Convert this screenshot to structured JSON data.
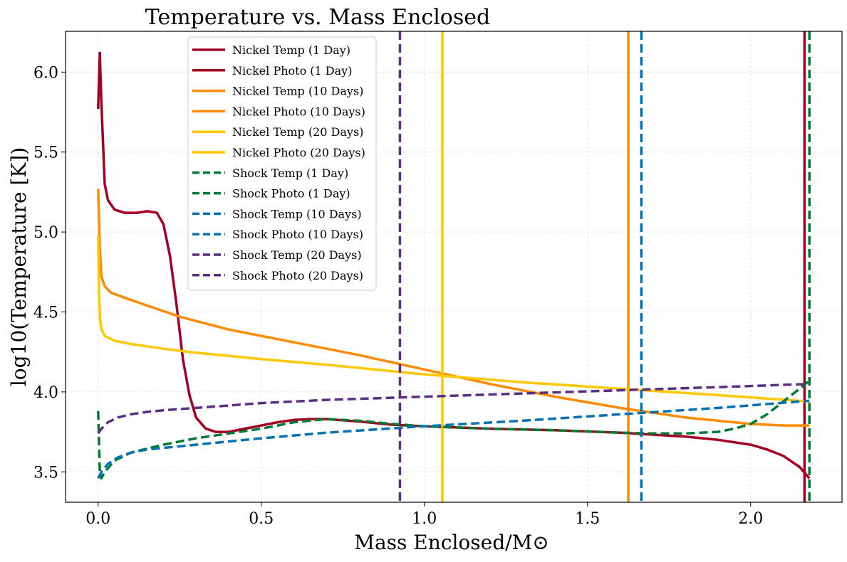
{
  "chart_data": {
    "type": "line",
    "title": "Temperature vs. Mass Enclosed",
    "xlabel": "Mass Enclosed/M⊙",
    "ylabel": "log10(Temperature [K])",
    "xlim": [
      -0.1,
      2.28
    ],
    "ylim": [
      3.31,
      6.255
    ],
    "xticks": [
      0.0,
      0.5,
      1.0,
      1.5,
      2.0
    ],
    "xtick_labels": [
      "0.0",
      "0.5",
      "1.0",
      "1.5",
      "2.0"
    ],
    "yticks": [
      3.5,
      4.0,
      4.5,
      5.0,
      5.5,
      6.0
    ],
    "ytick_labels": [
      "3.5",
      "4.0",
      "4.5",
      "5.0",
      "5.5",
      "6.0"
    ],
    "grid": true,
    "legend_position": "upper-center-left",
    "series": [
      {
        "name": "Nickel Temp (1 Day)",
        "color": "#a50021",
        "dash": "solid",
        "x": [
          0.0,
          0.005,
          0.01,
          0.015,
          0.02,
          0.03,
          0.05,
          0.08,
          0.12,
          0.15,
          0.18,
          0.2,
          0.22,
          0.24,
          0.26,
          0.28,
          0.3,
          0.33,
          0.36,
          0.4,
          0.45,
          0.5,
          0.55,
          0.6,
          0.65,
          0.7,
          0.8,
          0.9,
          1.0,
          1.2,
          1.4,
          1.6,
          1.8,
          1.9,
          2.0,
          2.05,
          2.1,
          2.15,
          2.18
        ],
        "y": [
          5.77,
          6.12,
          5.8,
          5.55,
          5.3,
          5.2,
          5.14,
          5.12,
          5.12,
          5.13,
          5.12,
          5.05,
          4.85,
          4.55,
          4.2,
          3.98,
          3.84,
          3.77,
          3.75,
          3.75,
          3.77,
          3.79,
          3.81,
          3.825,
          3.83,
          3.83,
          3.815,
          3.795,
          3.785,
          3.77,
          3.76,
          3.745,
          3.72,
          3.7,
          3.67,
          3.64,
          3.6,
          3.53,
          3.46
        ]
      },
      {
        "name": "Nickel Photo (1 Day)",
        "color": "#a50021",
        "dash": "solid",
        "vline": 2.165
      },
      {
        "name": "Nickel Temp (10 Days)",
        "color": "#ff8c00",
        "dash": "solid",
        "x": [
          0.0,
          0.005,
          0.01,
          0.02,
          0.04,
          0.08,
          0.15,
          0.25,
          0.4,
          0.6,
          0.8,
          1.0,
          1.2,
          1.4,
          1.6,
          1.8,
          2.0,
          2.1,
          2.18
        ],
        "y": [
          5.27,
          4.9,
          4.72,
          4.66,
          4.62,
          4.59,
          4.54,
          4.47,
          4.39,
          4.31,
          4.23,
          4.14,
          4.05,
          3.97,
          3.9,
          3.84,
          3.8,
          3.79,
          3.79
        ]
      },
      {
        "name": "Nickel Photo (10 Days)",
        "color": "#ff8c00",
        "dash": "solid",
        "vline": 1.625
      },
      {
        "name": "Nickel Temp (20 Days)",
        "color": "#ffc800",
        "dash": "solid",
        "x": [
          0.0,
          0.003,
          0.006,
          0.01,
          0.02,
          0.05,
          0.1,
          0.2,
          0.3,
          0.5,
          0.7,
          1.0,
          1.3,
          1.6,
          1.9,
          2.18
        ],
        "y": [
          4.98,
          4.6,
          4.45,
          4.39,
          4.35,
          4.32,
          4.3,
          4.27,
          4.245,
          4.205,
          4.17,
          4.11,
          4.06,
          4.02,
          3.98,
          3.94
        ]
      },
      {
        "name": "Nickel Photo (20 Days)",
        "color": "#ffc800",
        "dash": "solid",
        "vline": 1.055
      },
      {
        "name": "Shock Temp (1 Day)",
        "color": "#007a33",
        "dash": "dashed",
        "x": [
          0.0,
          0.005,
          0.01,
          0.02,
          0.05,
          0.1,
          0.2,
          0.3,
          0.4,
          0.5,
          0.6,
          0.7,
          0.8,
          0.9,
          1.0,
          1.2,
          1.4,
          1.6,
          1.7,
          1.8,
          1.9,
          1.95,
          2.0,
          2.05,
          2.1,
          2.15,
          2.18
        ],
        "y": [
          3.88,
          3.5,
          3.46,
          3.5,
          3.57,
          3.62,
          3.67,
          3.71,
          3.74,
          3.77,
          3.81,
          3.83,
          3.82,
          3.8,
          3.785,
          3.77,
          3.76,
          3.745,
          3.74,
          3.74,
          3.75,
          3.77,
          3.8,
          3.86,
          3.94,
          4.02,
          4.07
        ]
      },
      {
        "name": "Shock Photo (1 Day)",
        "color": "#007a33",
        "dash": "dashed",
        "vline": 2.18
      },
      {
        "name": "Shock Temp (10 Days)",
        "color": "#0072b2",
        "dash": "dashed",
        "x": [
          0.0,
          0.01,
          0.03,
          0.06,
          0.1,
          0.15,
          0.2,
          0.3,
          0.5,
          0.7,
          1.0,
          1.3,
          1.6,
          1.9,
          2.18
        ],
        "y": [
          3.46,
          3.5,
          3.55,
          3.59,
          3.62,
          3.64,
          3.65,
          3.67,
          3.71,
          3.745,
          3.785,
          3.82,
          3.86,
          3.9,
          3.945
        ]
      },
      {
        "name": "Shock Photo (10 Days)",
        "color": "#0072b2",
        "dash": "dashed",
        "vline": 1.665
      },
      {
        "name": "Shock Temp (20 Days)",
        "color": "#5c2d82",
        "dash": "dashed",
        "x": [
          0.0,
          0.01,
          0.03,
          0.06,
          0.1,
          0.15,
          0.2,
          0.3,
          0.5,
          0.7,
          1.0,
          1.3,
          1.6,
          1.9,
          2.18
        ],
        "y": [
          3.74,
          3.77,
          3.81,
          3.84,
          3.86,
          3.875,
          3.885,
          3.9,
          3.93,
          3.95,
          3.97,
          3.99,
          4.01,
          4.03,
          4.05
        ]
      },
      {
        "name": "Shock Photo (20 Days)",
        "color": "#5c2d82",
        "dash": "dashed",
        "vline": 0.925
      }
    ]
  }
}
